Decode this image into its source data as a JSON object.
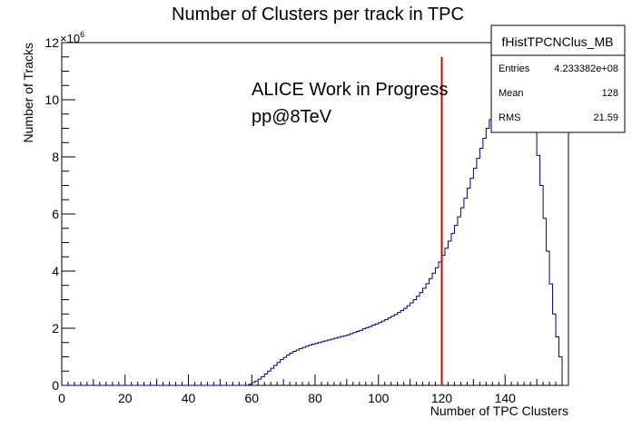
{
  "chart_data": {
    "type": "histogram-step",
    "title": "Number of Clusters per track in TPC",
    "xlabel": "Number of TPC Clusters",
    "ylabel": "Number of Tracks",
    "y_exponent_label": "×10",
    "y_exponent_power": "6",
    "xlim": [
      0,
      160
    ],
    "ylim": [
      0,
      12
    ],
    "x_ticks": [
      0,
      20,
      40,
      60,
      80,
      100,
      120,
      140
    ],
    "x_tick_labels": [
      "0",
      "20",
      "40",
      "60",
      "80",
      "100",
      "120",
      "140"
    ],
    "y_ticks": [
      0,
      2,
      4,
      6,
      8,
      10,
      12
    ],
    "y_tick_labels": [
      "0",
      "2",
      "4",
      "6",
      "8",
      "10",
      "12"
    ],
    "line_color": "#00007f",
    "cut_line": {
      "x": 120,
      "y_top": 11.5,
      "color": "#e00000"
    },
    "annotation_lines": [
      "ALICE Work in Progress",
      "pp@8TeV"
    ],
    "stats_box": {
      "name": "fHistTPCNClus_MB",
      "rows": [
        {
          "label": "Entries",
          "value": "4.233382e+08"
        },
        {
          "label": "Mean",
          "value": "128"
        },
        {
          "label": "RMS",
          "value": "21.59"
        }
      ]
    },
    "bin_width": 1,
    "bins": [
      [
        58,
        0.0
      ],
      [
        59,
        0.04
      ],
      [
        60,
        0.1
      ],
      [
        61,
        0.15
      ],
      [
        62,
        0.22
      ],
      [
        63,
        0.3
      ],
      [
        64,
        0.4
      ],
      [
        65,
        0.5
      ],
      [
        66,
        0.6
      ],
      [
        67,
        0.7
      ],
      [
        68,
        0.8
      ],
      [
        69,
        0.9
      ],
      [
        70,
        0.98
      ],
      [
        71,
        1.06
      ],
      [
        72,
        1.13
      ],
      [
        73,
        1.19
      ],
      [
        74,
        1.24
      ],
      [
        75,
        1.29
      ],
      [
        76,
        1.33
      ],
      [
        77,
        1.37
      ],
      [
        78,
        1.41
      ],
      [
        79,
        1.44
      ],
      [
        80,
        1.47
      ],
      [
        81,
        1.5
      ],
      [
        82,
        1.53
      ],
      [
        83,
        1.56
      ],
      [
        84,
        1.59
      ],
      [
        85,
        1.62
      ],
      [
        86,
        1.65
      ],
      [
        87,
        1.68
      ],
      [
        88,
        1.71
      ],
      [
        89,
        1.74
      ],
      [
        90,
        1.77
      ],
      [
        91,
        1.81
      ],
      [
        92,
        1.85
      ],
      [
        93,
        1.89
      ],
      [
        94,
        1.93
      ],
      [
        95,
        1.98
      ],
      [
        96,
        2.02
      ],
      [
        97,
        2.06
      ],
      [
        98,
        2.11
      ],
      [
        99,
        2.15
      ],
      [
        100,
        2.2
      ],
      [
        101,
        2.25
      ],
      [
        102,
        2.3
      ],
      [
        103,
        2.36
      ],
      [
        104,
        2.42
      ],
      [
        105,
        2.48
      ],
      [
        106,
        2.55
      ],
      [
        107,
        2.62
      ],
      [
        108,
        2.7
      ],
      [
        109,
        2.79
      ],
      [
        110,
        2.89
      ],
      [
        111,
        3.0
      ],
      [
        112,
        3.12
      ],
      [
        113,
        3.25
      ],
      [
        114,
        3.4
      ],
      [
        115,
        3.56
      ],
      [
        116,
        3.74
      ],
      [
        117,
        3.93
      ],
      [
        118,
        4.12
      ],
      [
        119,
        4.32
      ],
      [
        120,
        4.55
      ],
      [
        121,
        4.8
      ],
      [
        122,
        5.05
      ],
      [
        123,
        5.32
      ],
      [
        124,
        5.6
      ],
      [
        125,
        5.9
      ],
      [
        126,
        6.22
      ],
      [
        127,
        6.55
      ],
      [
        128,
        6.9
      ],
      [
        129,
        7.25
      ],
      [
        130,
        7.6
      ],
      [
        131,
        7.95
      ],
      [
        132,
        8.3
      ],
      [
        133,
        8.65
      ],
      [
        134,
        9.0
      ],
      [
        135,
        9.3
      ],
      [
        136,
        9.58
      ],
      [
        137,
        9.82
      ],
      [
        138,
        10.02
      ],
      [
        139,
        10.18
      ],
      [
        140,
        10.3
      ],
      [
        141,
        10.38
      ],
      [
        142,
        10.42
      ],
      [
        143,
        10.4
      ],
      [
        144,
        10.32
      ],
      [
        145,
        10.18
      ],
      [
        146,
        9.98
      ],
      [
        147,
        9.7
      ],
      [
        148,
        9.35
      ],
      [
        149,
        8.9
      ],
      [
        150,
        8.05
      ],
      [
        151,
        7.0
      ],
      [
        152,
        5.85
      ],
      [
        153,
        4.7
      ],
      [
        154,
        3.55
      ],
      [
        155,
        2.5
      ],
      [
        156,
        1.7
      ],
      [
        157,
        1.0
      ],
      [
        158,
        0.0
      ]
    ]
  }
}
